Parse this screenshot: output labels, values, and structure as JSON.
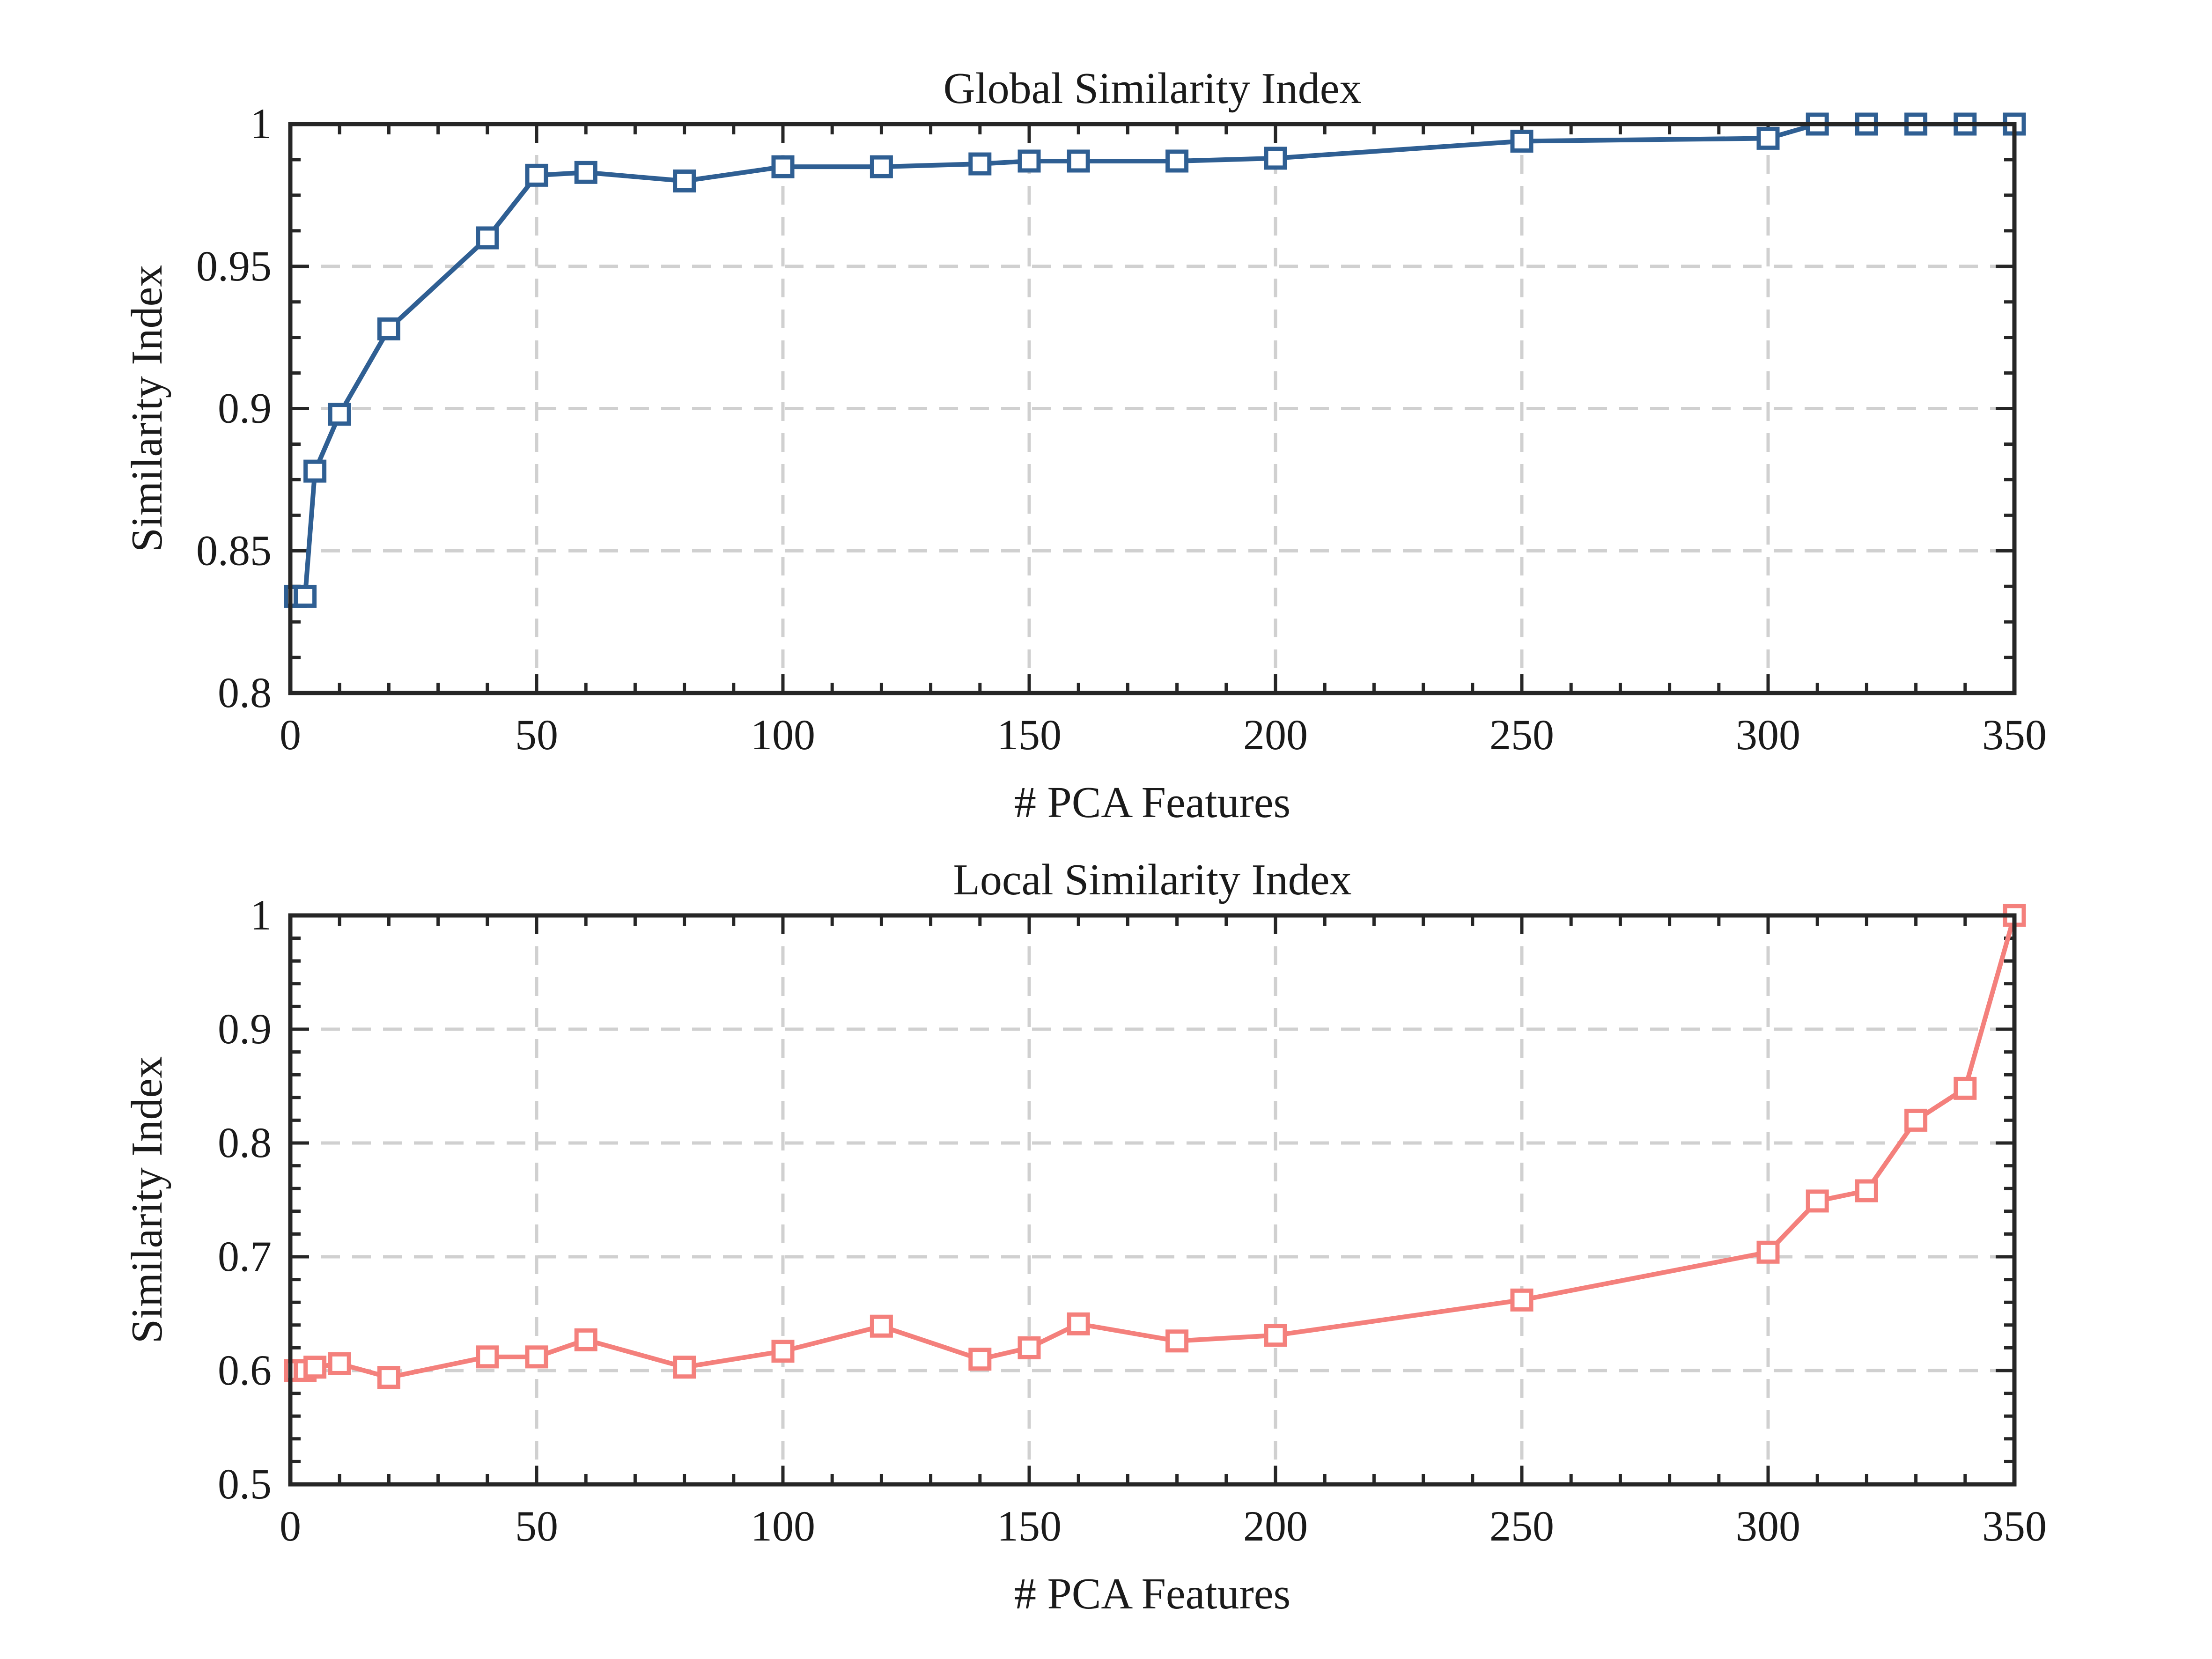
{
  "chart_data": [
    {
      "type": "line",
      "title": "Global Similarity Index",
      "xlabel": "# PCA Features",
      "ylabel": "Similarity Index",
      "xlim": [
        0,
        350
      ],
      "ylim": [
        0.8,
        1
      ],
      "xticks": [
        0,
        50,
        100,
        150,
        200,
        250,
        300,
        350
      ],
      "yticks": [
        0.8,
        0.85,
        0.9,
        0.95,
        1
      ],
      "xtick_labels": [
        "0",
        "50",
        "100",
        "150",
        "200",
        "250",
        "300",
        "350"
      ],
      "ytick_labels": [
        "0.8",
        "0.85",
        "0.9",
        "0.95",
        "1"
      ],
      "grid": true,
      "color": "#2f5f93",
      "marker": "square",
      "series": [
        {
          "x": [
            1,
            3,
            5,
            10,
            20,
            40,
            50,
            60,
            80,
            100,
            120,
            140,
            150,
            160,
            180,
            200,
            250,
            300,
            310,
            320,
            330,
            340,
            350
          ],
          "values": [
            0.834,
            0.834,
            0.878,
            0.898,
            0.928,
            0.96,
            0.982,
            0.983,
            0.98,
            0.985,
            0.985,
            0.986,
            0.987,
            0.987,
            0.987,
            0.988,
            0.994,
            0.995,
            1.0,
            1.0,
            1.0,
            1.0,
            1.0
          ]
        }
      ]
    },
    {
      "type": "line",
      "title": "Local Similarity Index",
      "xlabel": "# PCA Features",
      "ylabel": "Similarity Index",
      "xlim": [
        0,
        350
      ],
      "ylim": [
        0.5,
        1
      ],
      "xticks": [
        0,
        50,
        100,
        150,
        200,
        250,
        300,
        350
      ],
      "yticks": [
        0.5,
        0.6,
        0.7,
        0.8,
        0.9,
        1
      ],
      "xtick_labels": [
        "0",
        "50",
        "100",
        "150",
        "200",
        "250",
        "300",
        "350"
      ],
      "ytick_labels": [
        "0.5",
        "0.6",
        "0.7",
        "0.8",
        "0.9",
        "1"
      ],
      "grid": true,
      "color": "#f4807c",
      "marker": "square",
      "series": [
        {
          "x": [
            1,
            3,
            5,
            10,
            20,
            40,
            50,
            60,
            80,
            100,
            120,
            140,
            150,
            160,
            180,
            200,
            250,
            300,
            310,
            320,
            330,
            340,
            350
          ],
          "values": [
            0.6,
            0.6,
            0.603,
            0.606,
            0.594,
            0.612,
            0.612,
            0.627,
            0.603,
            0.617,
            0.639,
            0.61,
            0.62,
            0.641,
            0.626,
            0.631,
            0.662,
            0.704,
            0.749,
            0.758,
            0.82,
            0.848,
            1.0
          ]
        }
      ]
    }
  ]
}
